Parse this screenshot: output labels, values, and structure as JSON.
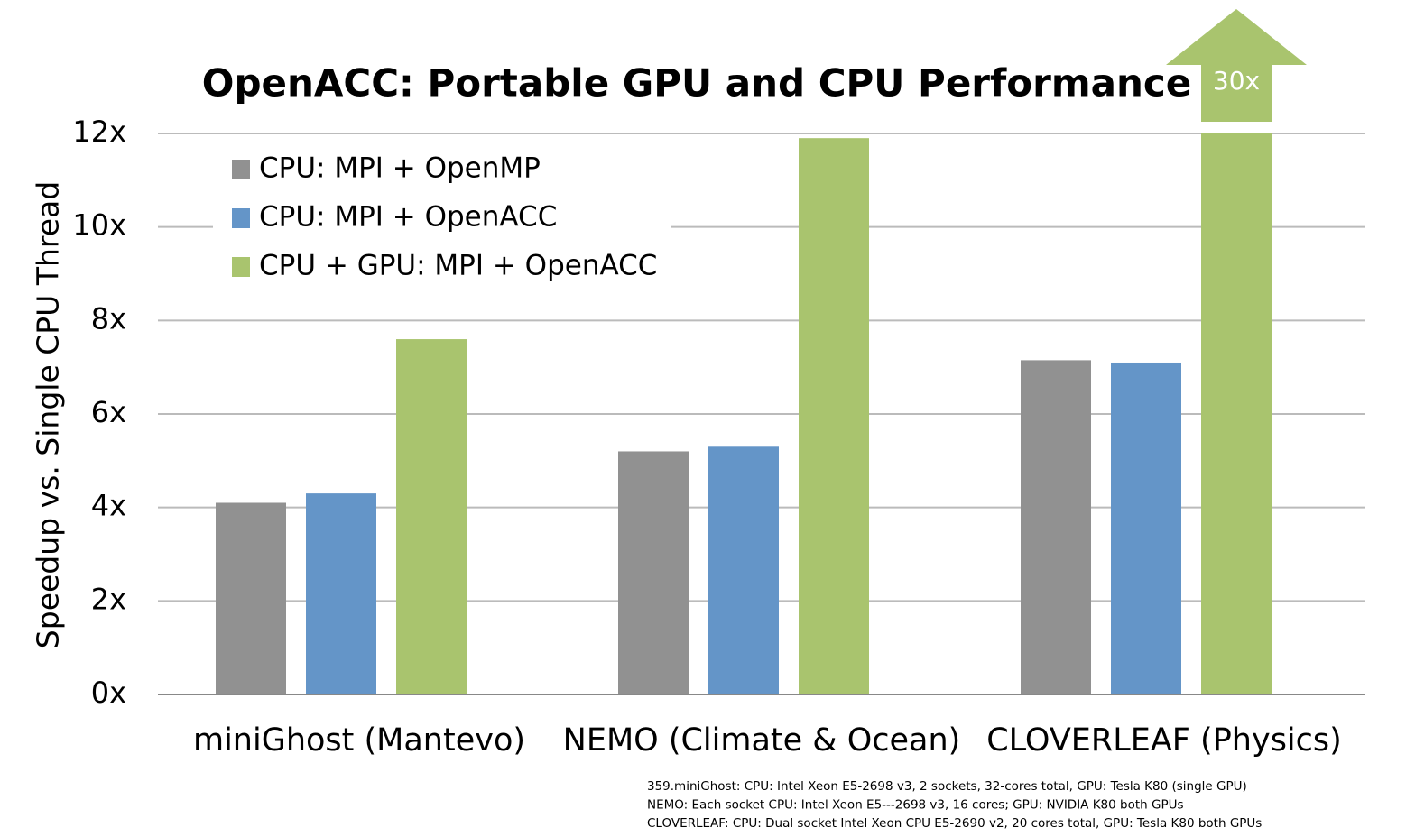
{
  "chart_data": {
    "type": "bar",
    "title": "OpenACC: Portable GPU and CPU Performance",
    "y_label": "Speedup vs. Single CPU Thread",
    "categories": [
      "miniGhost (Mantevo)",
      "NEMO (Climate & Ocean)",
      "CLOVERLEAF (Physics)"
    ],
    "series": [
      {
        "name": "CPU: MPI + OpenMP",
        "color": "#919191",
        "values": [
          4.1,
          5.2,
          7.15
        ]
      },
      {
        "name": "CPU: MPI + OpenACC",
        "color": "#6495c8",
        "values": [
          4.3,
          5.3,
          7.1
        ]
      },
      {
        "name": "CPU + GPU: MPI + OpenACC",
        "color": "#a9c46e",
        "values": [
          7.6,
          11.9,
          30
        ],
        "value_labels": [
          null,
          null,
          "30x"
        ]
      }
    ],
    "ylim": [
      0,
      12
    ],
    "yticks": [
      {
        "value": 0,
        "label": "0x"
      },
      {
        "value": 2,
        "label": "2x"
      },
      {
        "value": 4,
        "label": "4x"
      },
      {
        "value": 6,
        "label": "6x"
      },
      {
        "value": 8,
        "label": "8x"
      },
      {
        "value": 10,
        "label": "10x"
      },
      {
        "value": 12,
        "label": "12x"
      }
    ],
    "grid": true,
    "legend": "top-left",
    "notes": [
      "359.miniGhost: CPU: Intel Xeon E5-2698 v3, 2 sockets, 32-cores total, GPU: Tesla K80 (single GPU)",
      "NEMO: Each socket CPU: Intel Xeon E5---2698 v3, 16 cores; GPU: NVIDIA K80 both GPUs",
      "CLOVERLEAF: CPU: Dual socket Intel Xeon CPU E5-2690 v2, 20 cores total, GPU: Tesla K80 both GPUs"
    ]
  }
}
